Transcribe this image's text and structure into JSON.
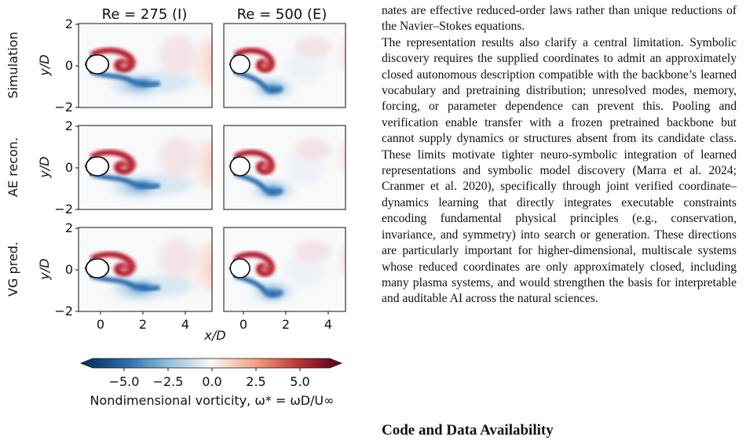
{
  "figure": {
    "column_titles": [
      "Re = 275 (I)",
      "Re = 500 (E)"
    ],
    "row_labels": [
      "Simulation",
      "AE recon.",
      "VG pred."
    ],
    "ylabel": "y/D",
    "xlabel": "x/D",
    "yticks": [
      "2",
      "0",
      "−2"
    ],
    "xticks": [
      "0",
      "2",
      "4"
    ],
    "colorbar": {
      "ticks": [
        "−5.0",
        "−2.5",
        "0.0",
        "2.5",
        "5.0"
      ],
      "label": "Nondimensional vorticity, ω* = ωD/U∞",
      "colors": {
        "negative": "#1f4e8c",
        "neutral": "#f7f7f7",
        "positive": "#8e0c23"
      }
    }
  },
  "text": {
    "para1": "nates are effective reduced-order laws rather than unique reductions of the Navier–Stokes equations.",
    "para2": "The representation results also clarify a central limitation. Symbolic discovery requires the supplied coordinates to admit an approximately closed autonomous description compatible with the backbone’s learned vocabulary and pretraining distribution; unresolved modes, memory, forcing, or parameter dependence can prevent this. Pooling and verification enable transfer with a frozen pretrained backbone but cannot supply dynamics or structures absent from its candidate class. These limits motivate tighter neuro-symbolic integration of learned representations and symbolic model discovery (Marra et al. 2024; Cranmer et al. 2020), specifically through joint verified coordinate–dynamics learning that directly integrates executable constraints encoding fundamental physical principles (e.g., conservation, invariance, and symmetry) into search or generation. These directions are particularly important for higher-dimensional, multiscale systems whose reduced coordinates are only approximately closed, including many plasma systems, and would strengthen the basis for interpretable and auditable AI across the natural sciences.",
    "section_heading": "Code and Data Availability"
  }
}
